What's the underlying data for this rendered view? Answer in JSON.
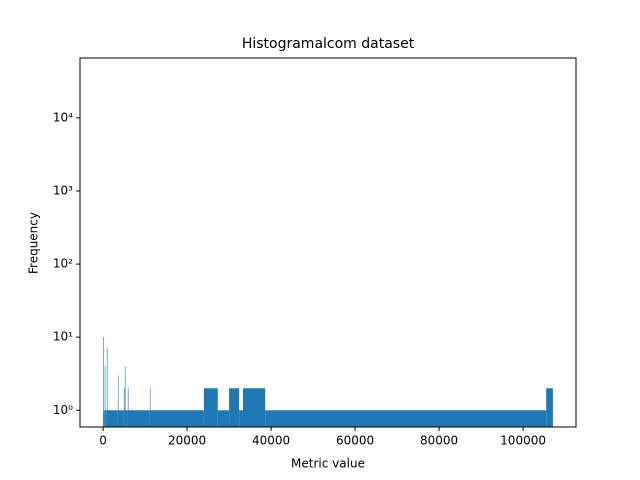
{
  "chart_data": {
    "type": "histogram",
    "title": "Histogramalcom dataset",
    "x_label": "Metric value",
    "y_label": "Frequency",
    "bins": [
      0,
      110,
      400,
      510,
      900,
      1010,
      3520,
      3630,
      4950,
      5060,
      5180,
      5290,
      5900,
      6010,
      11140,
      11250,
      24000,
      27300,
      30000,
      32400,
      33300,
      38600,
      105500,
      107100
    ],
    "counts": [
      10,
      1,
      4,
      1,
      7,
      1,
      3,
      1,
      2,
      1,
      4,
      1,
      2,
      1,
      2,
      1,
      2,
      1,
      2,
      1,
      2,
      1,
      2
    ],
    "color": "#1f77b4",
    "log_y": true,
    "xlim": [
      -5500,
      112600
    ],
    "xticks": [
      0,
      20000,
      40000,
      60000,
      80000,
      100000
    ],
    "ylim": [
      0.59,
      66000
    ],
    "yticks": [
      {
        "value": 1,
        "label": "10⁰"
      },
      {
        "value": 10,
        "label": "10¹"
      },
      {
        "value": 100,
        "label": "10²"
      },
      {
        "value": 1000,
        "label": "10³"
      },
      {
        "value": 10000,
        "label": "10⁴"
      }
    ]
  }
}
